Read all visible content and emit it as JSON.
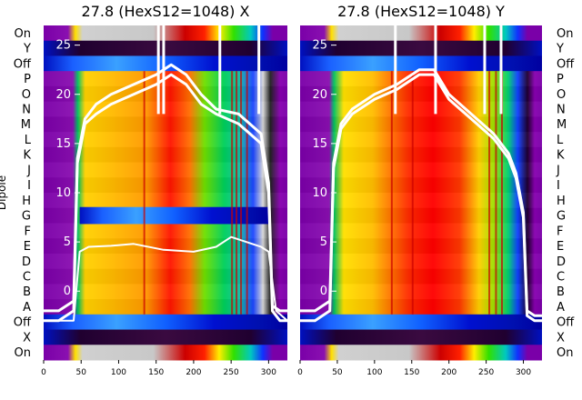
{
  "chart_data": [
    {
      "type": "heatmap",
      "title": "27.8 (HexS12=1048) X",
      "ylabel": "Dipole",
      "row_labels": [
        "On",
        "Y",
        "Off",
        "P",
        "O",
        "N",
        "M",
        "L",
        "K",
        "J",
        "I",
        "H",
        "G",
        "F",
        "E",
        "D",
        "C",
        "B",
        "A",
        "Off",
        "X",
        "On"
      ],
      "x_ticks": [
        0,
        50,
        100,
        150,
        200,
        250,
        300
      ],
      "xlim": [
        0,
        325
      ],
      "overlay_ticks": [
        25,
        20,
        15,
        10,
        5,
        0
      ],
      "overlay_ylim": [
        -7,
        27
      ],
      "series": [
        {
          "name": "",
          "x": [
            0,
            20,
            40,
            45,
            55,
            70,
            90,
            120,
            150,
            170,
            190,
            210,
            230,
            260,
            290,
            300,
            305,
            315,
            325
          ],
          "y": [
            -3,
            -3,
            -2,
            13,
            17,
            18,
            19,
            20,
            21,
            22,
            21,
            19,
            18,
            17,
            15,
            10,
            -2,
            -3,
            -3
          ]
        },
        {
          "name": "",
          "x": [
            0,
            20,
            40,
            45,
            55,
            70,
            90,
            120,
            150,
            170,
            190,
            210,
            230,
            260,
            290,
            300,
            305,
            315,
            325
          ],
          "y": [
            -2,
            -2,
            -1,
            13.5,
            17.5,
            19,
            20,
            21,
            22,
            23,
            22,
            20,
            18.5,
            18,
            16,
            11,
            -1.5,
            -2,
            -2
          ]
        },
        {
          "name": "",
          "x": [
            0,
            40,
            48,
            60,
            90,
            120,
            160,
            200,
            230,
            250,
            270,
            290,
            300,
            310,
            325
          ],
          "y": [
            -3,
            -3,
            4,
            4.5,
            4.6,
            4.8,
            4.2,
            4.0,
            4.5,
            5.5,
            5.0,
            4.5,
            4.0,
            -2,
            -3
          ]
        }
      ]
    },
    {
      "type": "heatmap",
      "title": "27.8 (HexS12=1048) Y",
      "row_labels": [
        "On",
        "Y",
        "Off",
        "P",
        "O",
        "N",
        "M",
        "L",
        "K",
        "J",
        "I",
        "H",
        "G",
        "F",
        "E",
        "D",
        "C",
        "B",
        "A",
        "Off",
        "X",
        "On"
      ],
      "x_ticks": [
        0,
        50,
        100,
        150,
        200,
        250,
        300
      ],
      "xlim": [
        0,
        325
      ],
      "overlay_ticks": [
        25,
        20,
        15,
        10,
        5,
        0
      ],
      "overlay_ylim": [
        -7,
        27
      ],
      "series": [
        {
          "name": "",
          "x": [
            0,
            20,
            40,
            45,
            55,
            70,
            100,
            130,
            160,
            180,
            200,
            230,
            260,
            280,
            290,
            300,
            305,
            315,
            325
          ],
          "y": [
            -2,
            -2,
            -1,
            13,
            17,
            18.5,
            20,
            21,
            22.5,
            22.5,
            20,
            18,
            16,
            14,
            12,
            8,
            -2,
            -2.5,
            -2.5
          ]
        },
        {
          "name": "",
          "x": [
            0,
            20,
            40,
            45,
            55,
            70,
            100,
            130,
            160,
            180,
            200,
            230,
            260,
            280,
            290,
            300,
            305,
            315,
            325
          ],
          "y": [
            -3,
            -3,
            -2,
            12.5,
            16.5,
            18,
            19.5,
            20.5,
            22,
            22,
            19.5,
            17.5,
            15.5,
            13.5,
            11.5,
            7.5,
            -2.5,
            -3,
            -3
          ]
        }
      ]
    }
  ]
}
